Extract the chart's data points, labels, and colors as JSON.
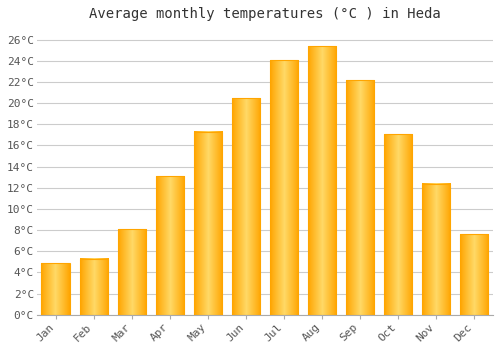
{
  "months": [
    "Jan",
    "Feb",
    "Mar",
    "Apr",
    "May",
    "Jun",
    "Jul",
    "Aug",
    "Sep",
    "Oct",
    "Nov",
    "Dec"
  ],
  "values": [
    4.9,
    5.3,
    8.1,
    13.1,
    17.3,
    20.5,
    24.1,
    25.4,
    22.2,
    17.1,
    12.4,
    7.6
  ],
  "bar_color_main": "#FFC125",
  "bar_color_edge": "#FFA500",
  "title": "Average monthly temperatures (°C ) in Heda",
  "ylim": [
    0,
    27
  ],
  "ytick_step": 2,
  "background_color": "#ffffff",
  "plot_bg_color": "#ffffff",
  "grid_color": "#cccccc",
  "title_fontsize": 10,
  "tick_fontsize": 8,
  "font_family": "monospace"
}
